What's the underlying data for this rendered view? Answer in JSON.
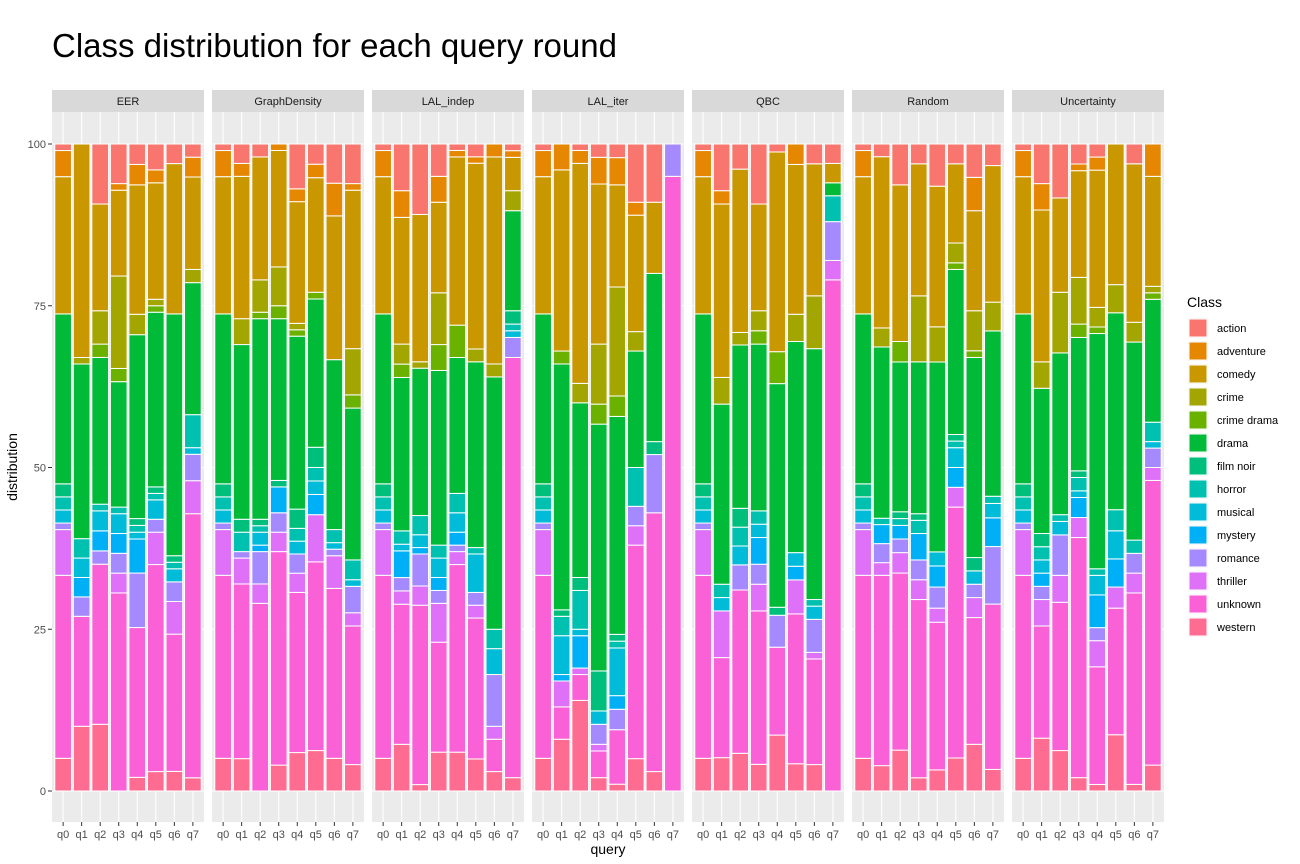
{
  "chart_data": {
    "type": "bar",
    "title": "Class distribution for each query round",
    "xlabel": "query",
    "ylabel": "distribution",
    "ylim": [
      0,
      100
    ],
    "yticks": [
      0,
      25,
      50,
      75,
      100
    ],
    "grid": true,
    "legend_position": "right",
    "legend_title": "Class",
    "categories": [
      "q0",
      "q1",
      "q2",
      "q3",
      "q4",
      "q5",
      "q6",
      "q7"
    ],
    "classes": [
      "action",
      "adventure",
      "comedy",
      "crime",
      "crime drama",
      "drama",
      "film noir",
      "horror",
      "musical",
      "mystery",
      "romance",
      "thriller",
      "unknown",
      "western"
    ],
    "colors": [
      "#F8766D",
      "#E58700",
      "#C99800",
      "#A3A500",
      "#6BB100",
      "#00BA38",
      "#00BF7D",
      "#00C0AF",
      "#00BCD8",
      "#00B0F6",
      "#A58AFF",
      "#DF70F8",
      "#FB61D7",
      "#FF6C91"
    ],
    "panels": [
      {
        "name": "EER",
        "stacks": [
          [
            1,
            4,
            21,
            0,
            0,
            26,
            2,
            2,
            2,
            0,
            1,
            7,
            28,
            5
          ],
          [
            0,
            0,
            33,
            1,
            0,
            27,
            0,
            3,
            3,
            3,
            3,
            0,
            17,
            10
          ],
          [
            9,
            0,
            16,
            5,
            2,
            22,
            0,
            1,
            3,
            3,
            2,
            0,
            24,
            10
          ],
          [
            6,
            1,
            13,
            14,
            2,
            19,
            0,
            1,
            3,
            3,
            3,
            3,
            30,
            0
          ],
          [
            3,
            3,
            19,
            3,
            0,
            27,
            1,
            1,
            1,
            5,
            8,
            0,
            22,
            2
          ],
          [
            4,
            2,
            18,
            1,
            1,
            27,
            1,
            1,
            3,
            0,
            2,
            5,
            32,
            3
          ],
          [
            3,
            0,
            23,
            0,
            0,
            37,
            1,
            1,
            2,
            0,
            3,
            5,
            21,
            3
          ],
          [
            2,
            3,
            14,
            2,
            0,
            20,
            0,
            5,
            1,
            0,
            4,
            5,
            40,
            2
          ]
        ]
      },
      {
        "name": "GraphDensity",
        "stacks": [
          [
            1,
            4,
            21,
            0,
            0,
            26,
            2,
            2,
            2,
            0,
            1,
            7,
            28,
            5
          ],
          [
            3,
            2,
            22,
            4,
            0,
            27,
            2,
            3,
            0,
            0,
            1,
            4,
            27,
            5
          ],
          [
            2,
            0,
            19,
            5,
            1,
            31,
            1,
            1,
            2,
            1,
            5,
            3,
            29,
            0
          ],
          [
            0,
            1,
            18,
            6,
            2,
            25,
            1,
            0,
            0,
            4,
            3,
            3,
            33,
            4
          ],
          [
            7,
            2,
            19,
            1,
            1,
            27,
            3,
            2,
            2,
            0,
            3,
            3,
            25,
            6
          ],
          [
            3,
            2,
            17,
            0,
            1,
            22,
            3,
            2,
            2,
            3,
            0,
            7,
            28,
            6
          ],
          [
            6,
            5,
            22,
            0,
            0,
            26,
            0,
            2,
            1,
            0,
            1,
            5,
            26,
            5
          ],
          [
            6,
            1,
            24,
            7,
            2,
            23,
            0,
            3,
            1,
            0,
            4,
            2,
            21,
            4
          ]
        ]
      },
      {
        "name": "LAL_indep",
        "stacks": [
          [
            1,
            4,
            21,
            0,
            0,
            26,
            2,
            2,
            2,
            0,
            1,
            7,
            28,
            5
          ],
          [
            7,
            4,
            19,
            3,
            2,
            23,
            0,
            2,
            1,
            4,
            2,
            2,
            21,
            7
          ],
          [
            11,
            0,
            23,
            1,
            0,
            23,
            0,
            3,
            2,
            1,
            5,
            3,
            28,
            1
          ],
          [
            5,
            4,
            14,
            8,
            4,
            27,
            0,
            2,
            3,
            2,
            2,
            6,
            17,
            6
          ],
          [
            1,
            1,
            26,
            0,
            5,
            21,
            0,
            3,
            3,
            2,
            1,
            2,
            29,
            6
          ],
          [
            2,
            1,
            29,
            2,
            0,
            29,
            0,
            1,
            6,
            0,
            2,
            2,
            22,
            5
          ],
          [
            0,
            2,
            32,
            2,
            0,
            39,
            0,
            3,
            4,
            0,
            8,
            2,
            5,
            3
          ],
          [
            1,
            1,
            5,
            3,
            0,
            15,
            2,
            1,
            1,
            0,
            3,
            0,
            63,
            2
          ]
        ]
      },
      {
        "name": "LAL_iter",
        "stacks": [
          [
            1,
            4,
            21,
            0,
            0,
            26,
            2,
            2,
            2,
            0,
            1,
            7,
            28,
            5
          ],
          [
            0,
            4,
            28,
            0,
            2,
            38,
            1,
            3,
            6,
            1,
            0,
            4,
            5,
            8
          ],
          [
            1,
            2,
            34,
            3,
            0,
            27,
            2,
            6,
            1,
            5,
            0,
            1,
            4,
            14
          ],
          [
            2,
            4,
            24,
            9,
            3,
            37,
            6,
            0,
            2,
            0,
            3,
            1,
            4,
            2
          ],
          [
            2,
            4,
            15,
            16,
            3,
            32,
            1,
            1,
            7,
            2,
            3,
            0,
            8,
            1
          ],
          [
            9,
            2,
            18,
            3,
            0,
            18,
            0,
            6,
            0,
            0,
            3,
            3,
            33,
            5
          ],
          [
            9,
            0,
            11,
            0,
            0,
            26,
            2,
            0,
            0,
            0,
            9,
            0,
            40,
            3
          ],
          [
            0,
            0,
            0,
            0,
            0,
            0,
            0,
            0,
            0,
            0,
            5,
            0,
            95,
            0
          ]
        ]
      },
      {
        "name": "QBC",
        "stacks": [
          [
            1,
            4,
            21,
            0,
            0,
            26,
            2,
            2,
            2,
            0,
            1,
            7,
            28,
            5
          ],
          [
            7,
            2,
            26,
            4,
            0,
            27,
            0,
            2,
            2,
            0,
            0,
            7,
            15,
            5
          ],
          [
            4,
            0,
            26,
            2,
            0,
            26,
            3,
            3,
            3,
            0,
            4,
            0,
            26,
            6
          ],
          [
            9,
            0,
            16,
            3,
            2,
            25,
            0,
            2,
            2,
            4,
            3,
            4,
            23,
            4
          ],
          [
            1,
            0,
            25,
            0,
            4,
            28,
            1,
            0,
            0,
            0,
            4,
            0,
            11,
            7
          ],
          [
            0,
            3,
            22,
            4,
            0,
            31,
            0,
            0,
            2,
            2,
            0,
            5,
            22,
            4
          ],
          [
            3,
            0,
            20,
            8,
            0,
            38,
            0,
            1,
            2,
            0,
            5,
            1,
            16,
            4
          ],
          [
            3,
            0,
            3,
            0,
            0,
            2,
            0,
            4,
            0,
            0,
            6,
            3,
            79,
            0
          ]
        ]
      },
      {
        "name": "Random",
        "stacks": [
          [
            1,
            4,
            21,
            0,
            0,
            26,
            2,
            2,
            2,
            0,
            1,
            7,
            28,
            5
          ],
          [
            2,
            0,
            27,
            3,
            0,
            27,
            0,
            1,
            0,
            3,
            3,
            2,
            30,
            4
          ],
          [
            6,
            0,
            23,
            0,
            3,
            22,
            1,
            1,
            0,
            2,
            2,
            3,
            26,
            6
          ],
          [
            3,
            0,
            20,
            10,
            0,
            23,
            1,
            2,
            0,
            4,
            3,
            3,
            27,
            2
          ],
          [
            6,
            0,
            20,
            5,
            0,
            27,
            0,
            0,
            2,
            3,
            3,
            2,
            21,
            3
          ],
          [
            3,
            0,
            12,
            3,
            1,
            25,
            1,
            1,
            3,
            3,
            0,
            3,
            38,
            5
          ],
          [
            5,
            5,
            15,
            6,
            1,
            30,
            2,
            0,
            2,
            0,
            2,
            3,
            19,
            7
          ],
          [
            3,
            0,
            19,
            4,
            0,
            23,
            0,
            1,
            2,
            4,
            8,
            0,
            23,
            3
          ]
        ]
      },
      {
        "name": "Uncertainty",
        "stacks": [
          [
            1,
            4,
            21,
            0,
            0,
            26,
            2,
            2,
            2,
            0,
            1,
            7,
            28,
            5
          ],
          [
            6,
            4,
            23,
            4,
            0,
            22,
            2,
            2,
            2,
            2,
            2,
            4,
            17,
            8
          ],
          [
            8,
            0,
            14,
            9,
            0,
            24,
            0,
            1,
            2,
            0,
            6,
            4,
            22,
            6
          ],
          [
            3,
            1,
            16,
            7,
            2,
            20,
            1,
            2,
            1,
            3,
            0,
            3,
            36,
            2
          ],
          [
            2,
            2,
            21,
            3,
            1,
            36,
            0,
            1,
            3,
            5,
            2,
            4,
            18,
            1
          ],
          [
            0,
            0,
            20,
            4,
            0,
            28,
            0,
            3,
            4,
            4,
            0,
            3,
            18,
            8
          ],
          [
            3,
            0,
            24,
            3,
            0,
            30,
            0,
            2,
            0,
            0,
            3,
            3,
            29,
            1
          ],
          [
            0,
            5,
            17,
            1,
            1,
            19,
            0,
            3,
            1,
            0,
            3,
            2,
            44,
            4
          ]
        ]
      }
    ]
  }
}
